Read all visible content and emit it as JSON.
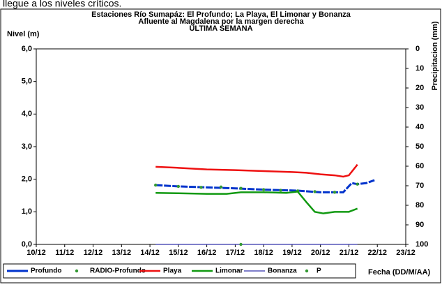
{
  "caption": "llegue a los niveles críticos.",
  "chart_data": {
    "type": "line",
    "title": "Estaciones Río Sumapáz: El Profundo; La Playa, El Limonar y Bonanza",
    "subtitle": "Afluente al Magdalena por la margen derecha",
    "subtitle2": "ULTIMA SEMANA",
    "y_label": "Nivel (m)",
    "y2_label": "Precipitacion (mm)",
    "x_label": "Fecha (DD/M/AA)",
    "xlim": [
      10,
      23
    ],
    "xticks": [
      {
        "value": 10,
        "label": "10/12"
      },
      {
        "value": 11,
        "label": "11/12"
      },
      {
        "value": 12,
        "label": "12/12"
      },
      {
        "value": 13,
        "label": "13/12"
      },
      {
        "value": 14,
        "label": "14/12"
      },
      {
        "value": 15,
        "label": "15/12"
      },
      {
        "value": 16,
        "label": "16/12"
      },
      {
        "value": 17,
        "label": "17/12"
      },
      {
        "value": 18,
        "label": "18/12"
      },
      {
        "value": 19,
        "label": "19/12"
      },
      {
        "value": 20,
        "label": "20/12"
      },
      {
        "value": 21,
        "label": "21/12"
      },
      {
        "value": 22,
        "label": "22/12"
      },
      {
        "value": 23,
        "label": "23/12"
      }
    ],
    "ylim": [
      0,
      6
    ],
    "yticks": [
      {
        "value": 0,
        "label": "0,0"
      },
      {
        "value": 1,
        "label": "1,0"
      },
      {
        "value": 2,
        "label": "2,0"
      },
      {
        "value": 3,
        "label": "3,0"
      },
      {
        "value": 4,
        "label": "4,0"
      },
      {
        "value": 5,
        "label": "5,0"
      },
      {
        "value": 6,
        "label": "6,0"
      }
    ],
    "y2lim": [
      100,
      0
    ],
    "y2_inverted": true,
    "y2ticks": [
      0,
      10,
      20,
      30,
      40,
      50,
      60,
      70,
      80,
      90,
      100
    ],
    "legend": "bottom",
    "series": [
      {
        "name": "Profundo",
        "color": "#0033cc",
        "style": "dash",
        "x": [
          14.2,
          15.0,
          16.0,
          17.0,
          18.0,
          19.2,
          20.0,
          20.8,
          21.1,
          21.3,
          21.6,
          21.9
        ],
        "values": [
          1.82,
          1.78,
          1.75,
          1.72,
          1.68,
          1.65,
          1.6,
          1.6,
          1.88,
          1.85,
          1.88,
          1.97
        ]
      },
      {
        "name": "RADIO-Profundo",
        "color": "#339933",
        "style": "dots",
        "x": [
          14.2,
          15.0,
          15.8,
          16.5,
          17.2,
          18.0,
          18.6,
          19.2,
          19.8,
          20.5,
          21.3
        ],
        "values": [
          1.82,
          1.78,
          1.75,
          1.76,
          1.72,
          1.68,
          1.66,
          1.64,
          1.62,
          1.6,
          1.85
        ]
      },
      {
        "name": "Playa",
        "color": "#ee1111",
        "style": "line",
        "x": [
          14.2,
          15.0,
          16.0,
          17.0,
          18.0,
          19.0,
          19.5,
          20.0,
          20.5,
          20.8,
          21.0,
          21.3
        ],
        "values": [
          2.38,
          2.35,
          2.3,
          2.28,
          2.25,
          2.22,
          2.2,
          2.15,
          2.12,
          2.08,
          2.12,
          2.45
        ]
      },
      {
        "name": "Limonar",
        "color": "#119911",
        "style": "line",
        "x": [
          14.2,
          15.0,
          16.0,
          16.7,
          17.2,
          18.0,
          18.8,
          19.2,
          19.5,
          19.8,
          20.1,
          20.5,
          21.0,
          21.3
        ],
        "values": [
          1.58,
          1.57,
          1.55,
          1.55,
          1.6,
          1.6,
          1.58,
          1.62,
          1.3,
          1.0,
          0.95,
          1.0,
          1.0,
          1.1
        ]
      },
      {
        "name": "Bonanza",
        "color": "#3333aa",
        "style": "thin",
        "x": [
          14.2,
          21.3
        ],
        "values": [
          0,
          0
        ]
      },
      {
        "name": "P",
        "color": "#339933",
        "style": "dots",
        "axis": "y2",
        "x": [
          17.2
        ],
        "values": [
          100
        ]
      }
    ]
  }
}
